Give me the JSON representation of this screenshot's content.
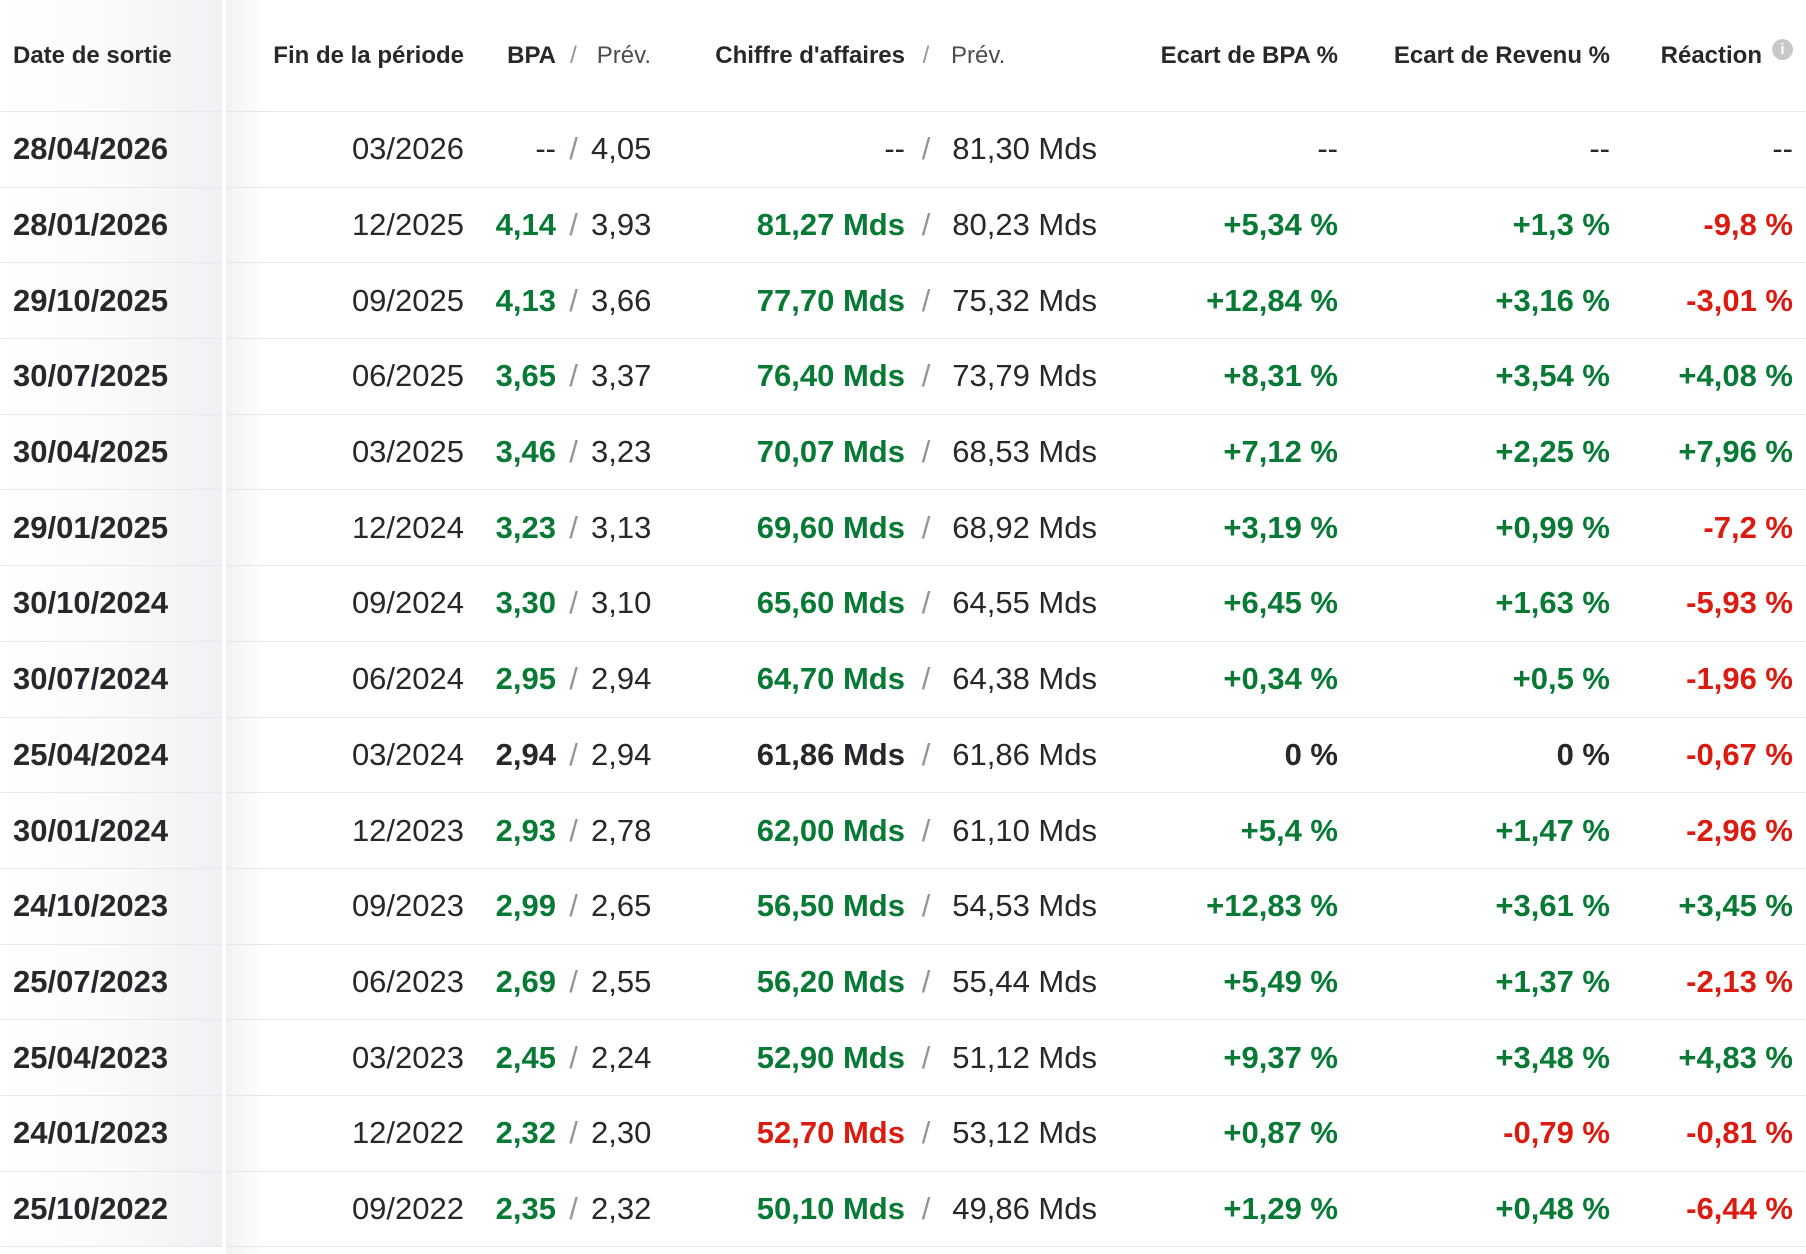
{
  "header": {
    "col_date": "Date de sortie",
    "col_period": "Fin de la période",
    "col_eps": "BPA",
    "col_eps_forecast": "Prév.",
    "col_revenue": "Chiffre d'affaires",
    "col_revenue_forecast": "Prév.",
    "col_eps_surprise": "Ecart de BPA %",
    "col_revenue_surprise": "Ecart de Revenu %",
    "col_reaction": "Réaction",
    "info_icon_glyph": "i"
  },
  "symbols": {
    "slash": "/"
  },
  "colors": {
    "positive": "#087a35",
    "negative": "#db1b10",
    "text": "#26282b",
    "separator": "#e4e9ef",
    "info_icon_bg": "#c6c8ca"
  },
  "rows": [
    {
      "date": "28/04/2026",
      "period": "03/2026",
      "eps": "--",
      "eps_class": "neutral",
      "eps_forecast": "4,05",
      "rev": "--",
      "rev_class": "neutral",
      "rev_forecast": "81,30 Mds",
      "eps_surprise": "--",
      "eps_surprise_class": "neutral",
      "rev_surprise": "--",
      "rev_surprise_class": "neutral",
      "reaction": "--",
      "reaction_class": "neutral"
    },
    {
      "date": "28/01/2026",
      "period": "12/2025",
      "eps": "4,14",
      "eps_class": "pos",
      "eps_forecast": "3,93",
      "rev": "81,27 Mds",
      "rev_class": "pos",
      "rev_forecast": "80,23 Mds",
      "eps_surprise": "+5,34 %",
      "eps_surprise_class": "pos",
      "rev_surprise": "+1,3 %",
      "rev_surprise_class": "pos",
      "reaction": "-9,8 %",
      "reaction_class": "neg"
    },
    {
      "date": "29/10/2025",
      "period": "09/2025",
      "eps": "4,13",
      "eps_class": "pos",
      "eps_forecast": "3,66",
      "rev": "77,70 Mds",
      "rev_class": "pos",
      "rev_forecast": "75,32 Mds",
      "eps_surprise": "+12,84 %",
      "eps_surprise_class": "pos",
      "rev_surprise": "+3,16 %",
      "rev_surprise_class": "pos",
      "reaction": "-3,01 %",
      "reaction_class": "neg"
    },
    {
      "date": "30/07/2025",
      "period": "06/2025",
      "eps": "3,65",
      "eps_class": "pos",
      "eps_forecast": "3,37",
      "rev": "76,40 Mds",
      "rev_class": "pos",
      "rev_forecast": "73,79 Mds",
      "eps_surprise": "+8,31 %",
      "eps_surprise_class": "pos",
      "rev_surprise": "+3,54 %",
      "rev_surprise_class": "pos",
      "reaction": "+4,08 %",
      "reaction_class": "pos"
    },
    {
      "date": "30/04/2025",
      "period": "03/2025",
      "eps": "3,46",
      "eps_class": "pos",
      "eps_forecast": "3,23",
      "rev": "70,07 Mds",
      "rev_class": "pos",
      "rev_forecast": "68,53 Mds",
      "eps_surprise": "+7,12 %",
      "eps_surprise_class": "pos",
      "rev_surprise": "+2,25 %",
      "rev_surprise_class": "pos",
      "reaction": "+7,96 %",
      "reaction_class": "pos"
    },
    {
      "date": "29/01/2025",
      "period": "12/2024",
      "eps": "3,23",
      "eps_class": "pos",
      "eps_forecast": "3,13",
      "rev": "69,60 Mds",
      "rev_class": "pos",
      "rev_forecast": "68,92 Mds",
      "eps_surprise": "+3,19 %",
      "eps_surprise_class": "pos",
      "rev_surprise": "+0,99 %",
      "rev_surprise_class": "pos",
      "reaction": "-7,2 %",
      "reaction_class": "neg"
    },
    {
      "date": "30/10/2024",
      "period": "09/2024",
      "eps": "3,30",
      "eps_class": "pos",
      "eps_forecast": "3,10",
      "rev": "65,60 Mds",
      "rev_class": "pos",
      "rev_forecast": "64,55 Mds",
      "eps_surprise": "+6,45 %",
      "eps_surprise_class": "pos",
      "rev_surprise": "+1,63 %",
      "rev_surprise_class": "pos",
      "reaction": "-5,93 %",
      "reaction_class": "neg"
    },
    {
      "date": "30/07/2024",
      "period": "06/2024",
      "eps": "2,95",
      "eps_class": "pos",
      "eps_forecast": "2,94",
      "rev": "64,70 Mds",
      "rev_class": "pos",
      "rev_forecast": "64,38 Mds",
      "eps_surprise": "+0,34 %",
      "eps_surprise_class": "pos",
      "rev_surprise": "+0,5 %",
      "rev_surprise_class": "pos",
      "reaction": "-1,96 %",
      "reaction_class": "neg"
    },
    {
      "date": "25/04/2024",
      "period": "03/2024",
      "eps": "2,94",
      "eps_class": "flat",
      "eps_forecast": "2,94",
      "rev": "61,86 Mds",
      "rev_class": "flat",
      "rev_forecast": "61,86 Mds",
      "eps_surprise": "0 %",
      "eps_surprise_class": "flat",
      "rev_surprise": "0 %",
      "rev_surprise_class": "flat",
      "reaction": "-0,67 %",
      "reaction_class": "neg"
    },
    {
      "date": "30/01/2024",
      "period": "12/2023",
      "eps": "2,93",
      "eps_class": "pos",
      "eps_forecast": "2,78",
      "rev": "62,00 Mds",
      "rev_class": "pos",
      "rev_forecast": "61,10 Mds",
      "eps_surprise": "+5,4 %",
      "eps_surprise_class": "pos",
      "rev_surprise": "+1,47 %",
      "rev_surprise_class": "pos",
      "reaction": "-2,96 %",
      "reaction_class": "neg"
    },
    {
      "date": "24/10/2023",
      "period": "09/2023",
      "eps": "2,99",
      "eps_class": "pos",
      "eps_forecast": "2,65",
      "rev": "56,50 Mds",
      "rev_class": "pos",
      "rev_forecast": "54,53 Mds",
      "eps_surprise": "+12,83 %",
      "eps_surprise_class": "pos",
      "rev_surprise": "+3,61 %",
      "rev_surprise_class": "pos",
      "reaction": "+3,45 %",
      "reaction_class": "pos"
    },
    {
      "date": "25/07/2023",
      "period": "06/2023",
      "eps": "2,69",
      "eps_class": "pos",
      "eps_forecast": "2,55",
      "rev": "56,20 Mds",
      "rev_class": "pos",
      "rev_forecast": "55,44 Mds",
      "eps_surprise": "+5,49 %",
      "eps_surprise_class": "pos",
      "rev_surprise": "+1,37 %",
      "rev_surprise_class": "pos",
      "reaction": "-2,13 %",
      "reaction_class": "neg"
    },
    {
      "date": "25/04/2023",
      "period": "03/2023",
      "eps": "2,45",
      "eps_class": "pos",
      "eps_forecast": "2,24",
      "rev": "52,90 Mds",
      "rev_class": "pos",
      "rev_forecast": "51,12 Mds",
      "eps_surprise": "+9,37 %",
      "eps_surprise_class": "pos",
      "rev_surprise": "+3,48 %",
      "rev_surprise_class": "pos",
      "reaction": "+4,83 %",
      "reaction_class": "pos"
    },
    {
      "date": "24/01/2023",
      "period": "12/2022",
      "eps": "2,32",
      "eps_class": "pos",
      "eps_forecast": "2,30",
      "rev": "52,70 Mds",
      "rev_class": "neg",
      "rev_forecast": "53,12 Mds",
      "eps_surprise": "+0,87 %",
      "eps_surprise_class": "pos",
      "rev_surprise": "-0,79 %",
      "rev_surprise_class": "neg",
      "reaction": "-0,81 %",
      "reaction_class": "neg"
    },
    {
      "date": "25/10/2022",
      "period": "09/2022",
      "eps": "2,35",
      "eps_class": "pos",
      "eps_forecast": "2,32",
      "rev": "50,10 Mds",
      "rev_class": "pos",
      "rev_forecast": "49,86 Mds",
      "eps_surprise": "+1,29 %",
      "eps_surprise_class": "pos",
      "rev_surprise": "+0,48 %",
      "rev_surprise_class": "pos",
      "reaction": "-6,44 %",
      "reaction_class": "neg"
    }
  ]
}
